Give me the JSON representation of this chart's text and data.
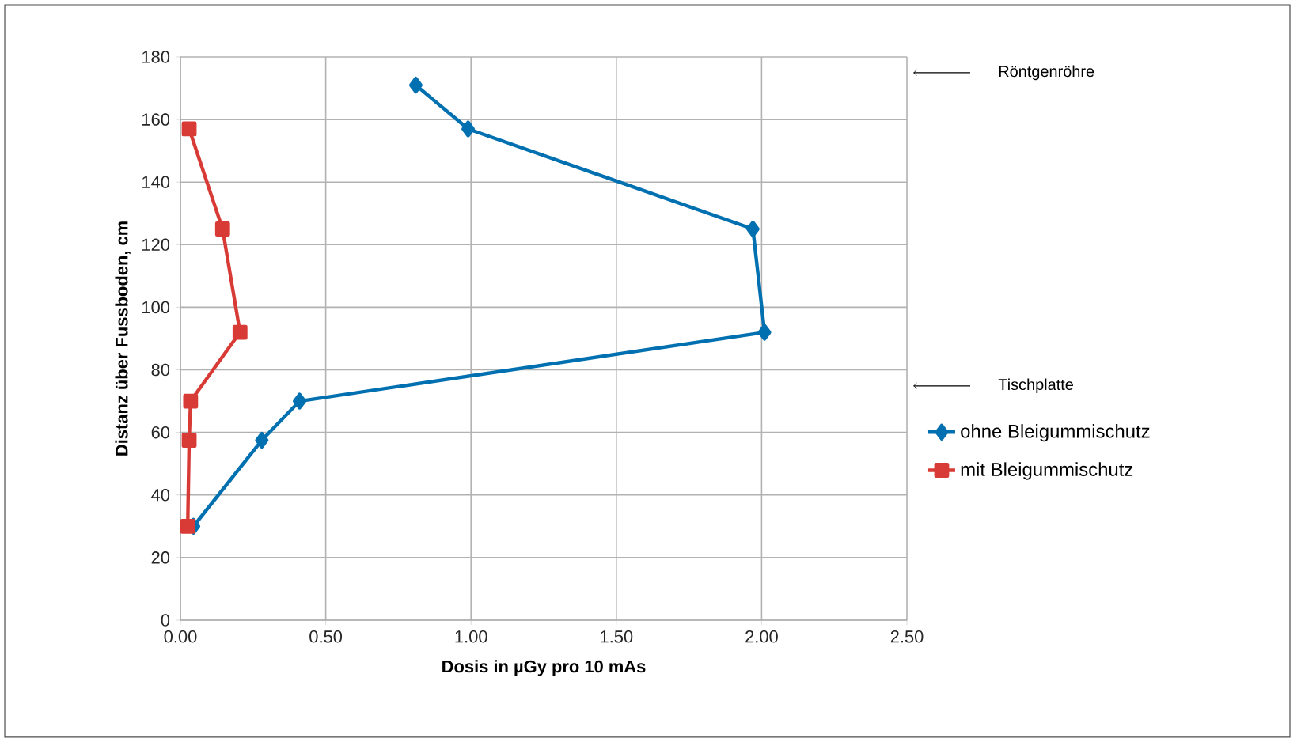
{
  "chart_data": {
    "type": "line",
    "xlabel": "Dosis in µGy pro 10 mAs",
    "ylabel": "Distanz über Fussboden, cm",
    "xlim": [
      0,
      2.5
    ],
    "ylim": [
      0,
      180
    ],
    "xticks": [
      {
        "value": 0,
        "label": "0.00"
      },
      {
        "value": 0.5,
        "label": "0.50"
      },
      {
        "value": 1,
        "label": "1.00"
      },
      {
        "value": 1.5,
        "label": "1.50"
      },
      {
        "value": 2,
        "label": "2.00"
      },
      {
        "value": 2.5,
        "label": "2.50"
      }
    ],
    "yticks": [
      0,
      20,
      40,
      60,
      80,
      100,
      120,
      140,
      160,
      180
    ],
    "grid": true,
    "legend": "right",
    "series": [
      {
        "name": "ohne Bleigummischutz",
        "color": "#0070b0",
        "marker": "diamond",
        "x": [
          0.81,
          0.99,
          1.97,
          2.01,
          0.41,
          0.28,
          0.045
        ],
        "values": [
          171,
          157,
          125,
          92,
          70,
          57.5,
          30
        ]
      },
      {
        "name": "mit Bleigummischutz",
        "color": "#d83b36",
        "marker": "square",
        "x": [
          0.03,
          0.145,
          0.205,
          0.035,
          0.03,
          0.025
        ],
        "values": [
          157,
          125,
          92,
          70,
          57.5,
          30
        ]
      }
    ],
    "annotations": [
      "Röntgenröhre",
      "Tischplatte"
    ]
  }
}
